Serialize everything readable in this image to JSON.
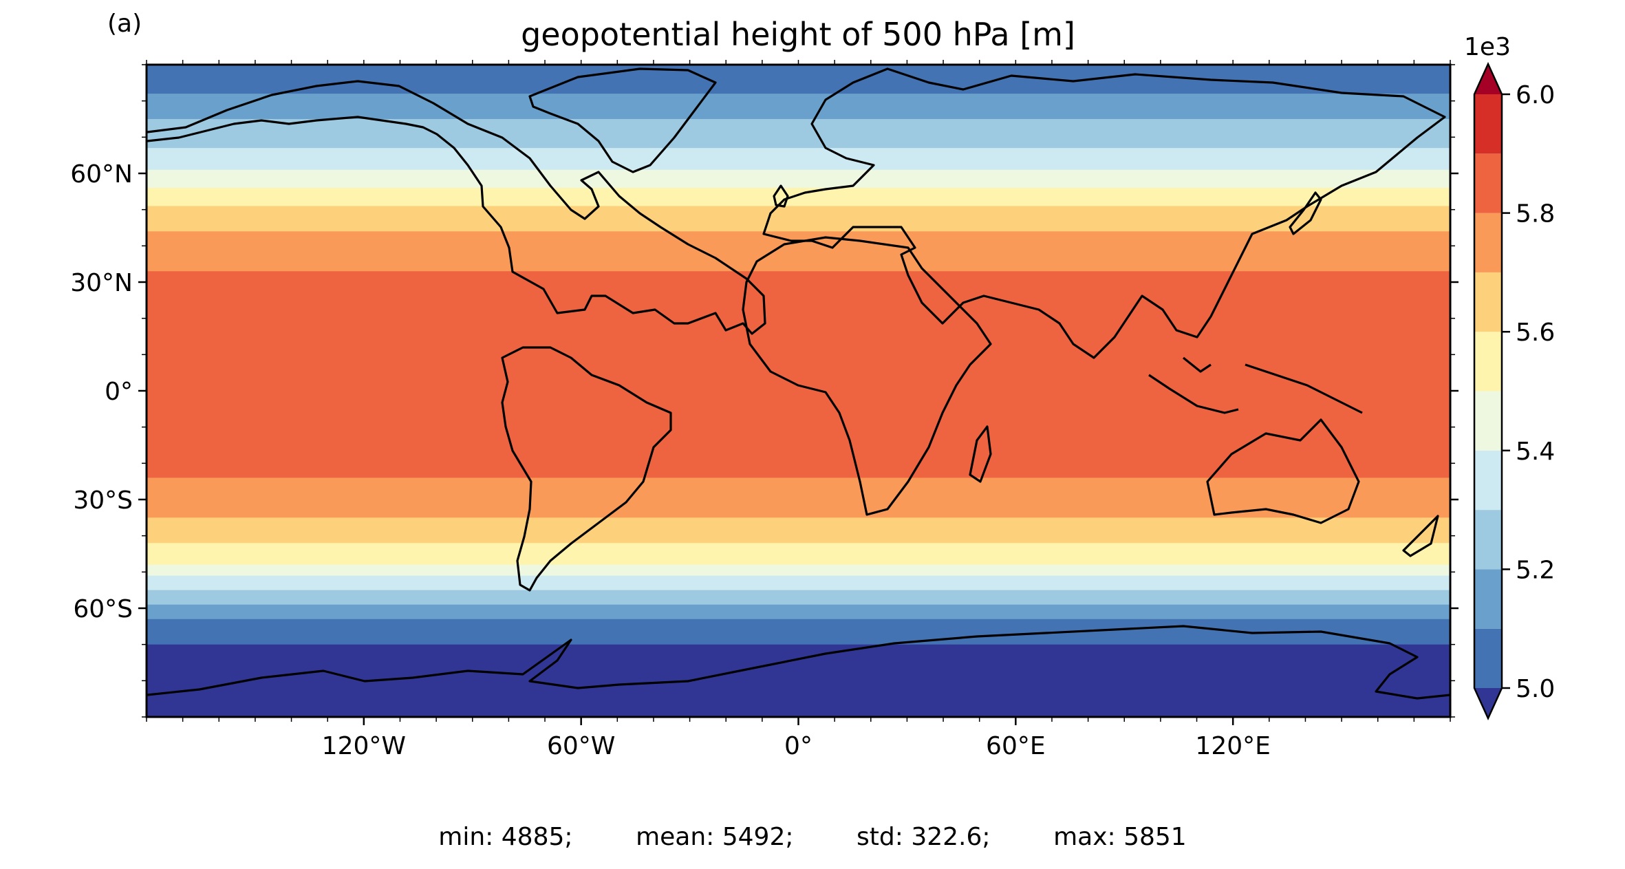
{
  "panel_label": "(a)",
  "title": "geopotential height of 500 hPa [m]",
  "colorbar": {
    "multiplier_label": "1e3",
    "tick_values": [
      5.0,
      5.2,
      5.4,
      5.6,
      5.8,
      6.0
    ],
    "tick_labels": [
      "5.0",
      "5.2",
      "5.4",
      "5.6",
      "5.8",
      "6.0"
    ],
    "levels": [
      5.0,
      5.1,
      5.2,
      5.3,
      5.4,
      5.5,
      5.6,
      5.7,
      5.8,
      5.9,
      6.0
    ],
    "colors": [
      "#4473b4",
      "#6aa0cc",
      "#9dcae1",
      "#cde9f2",
      "#eef7e0",
      "#fef4ad",
      "#fdd07c",
      "#fa9a58",
      "#ee6340",
      "#d62f27"
    ],
    "under_color": "#313695",
    "over_color": "#a50026",
    "extend": "both"
  },
  "map": {
    "projection": "PlateCarree",
    "lon_range": [
      -180,
      180
    ],
    "lat_range": [
      -90,
      90
    ],
    "x_ticks": [
      -120,
      -60,
      0,
      60,
      120
    ],
    "x_tick_labels": [
      "120°W",
      "60°W",
      "0°",
      "60°E",
      "120°E"
    ],
    "y_ticks": [
      60,
      30,
      0,
      -30,
      -60
    ],
    "y_tick_labels": [
      "60°N",
      "30°N",
      "0°",
      "30°S",
      "60°S"
    ],
    "coastlines": true,
    "bands_deg": [
      {
        "level": "over",
        "color": "#ee6340",
        "north": 33,
        "south": -24
      },
      {
        "level": 5.7,
        "color": "#fa9a58",
        "north": 44,
        "south": -35
      },
      {
        "level": 5.6,
        "color": "#fdd07c",
        "north": 51,
        "south": -42
      },
      {
        "level": 5.5,
        "color": "#fef4ad",
        "north": 56,
        "south": -48
      },
      {
        "level": 5.4,
        "color": "#eef7e0",
        "north": 61,
        "south": -51
      },
      {
        "level": 5.3,
        "color": "#cde9f2",
        "north": 67,
        "south": -55
      },
      {
        "level": 5.2,
        "color": "#9dcae1",
        "north": 75,
        "south": -59
      },
      {
        "level": 5.1,
        "color": "#6aa0cc",
        "north": 82,
        "south": -63
      },
      {
        "level": 5.0,
        "color": "#4473b4",
        "north": 90,
        "south": -70
      },
      {
        "level": "under",
        "color": "#313695",
        "north": 90,
        "south": -90
      }
    ]
  },
  "stats": {
    "min": "min: 4885;",
    "mean": "mean: 5492;",
    "std": "std: 322.6;",
    "max": "max: 5851"
  }
}
